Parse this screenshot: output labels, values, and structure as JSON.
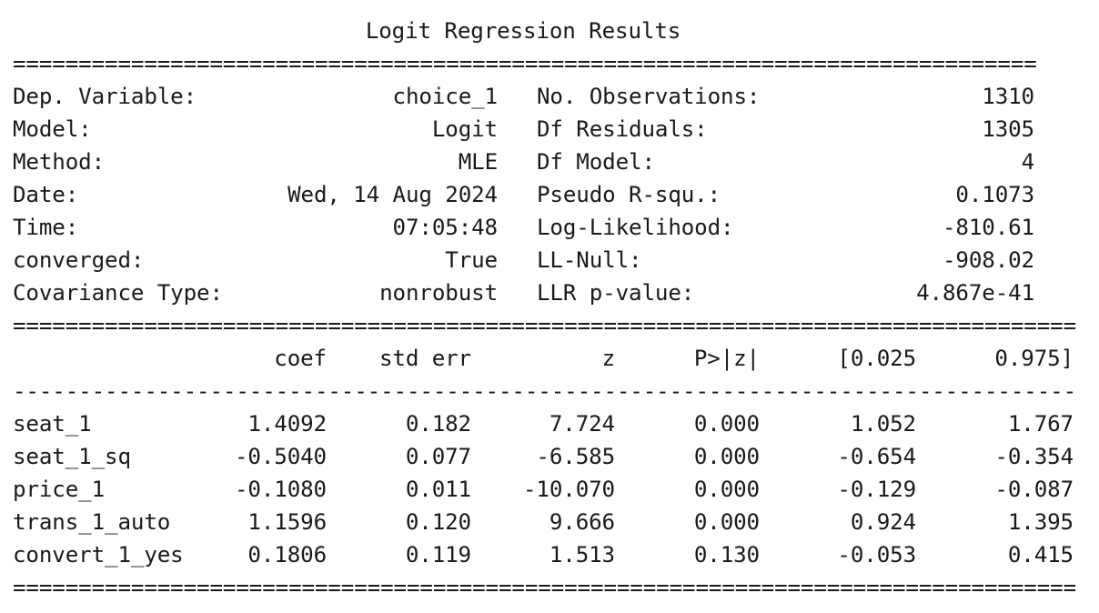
{
  "title": "Logit Regression Results",
  "separator_double": "=",
  "separator_single": "-",
  "summary_rows": [
    {
      "left_label": "Dep. Variable:",
      "left_value": "choice_1",
      "right_label": "No. Observations:",
      "right_value": "1310"
    },
    {
      "left_label": "Model:",
      "left_value": "Logit",
      "right_label": "Df Residuals:",
      "right_value": "1305"
    },
    {
      "left_label": "Method:",
      "left_value": "MLE",
      "right_label": "Df Model:",
      "right_value": "4"
    },
    {
      "left_label": "Date:",
      "left_value": "Wed, 14 Aug 2024",
      "right_label": "Pseudo R-squ.:",
      "right_value": "0.1073"
    },
    {
      "left_label": "Time:",
      "left_value": "07:05:48",
      "right_label": "Log-Likelihood:",
      "right_value": "-810.61"
    },
    {
      "left_label": "converged:",
      "left_value": "True",
      "right_label": "LL-Null:",
      "right_value": "-908.02"
    },
    {
      "left_label": "Covariance Type:",
      "left_value": "nonrobust",
      "right_label": "LLR p-value:",
      "right_value": "4.867e-41"
    }
  ],
  "coef_headers": [
    "coef",
    "std err",
    "z",
    "P>|z|",
    "[0.025",
    "0.975]"
  ],
  "coef_rows": [
    {
      "name": "seat_1",
      "values": [
        "1.4092",
        "0.182",
        "7.724",
        "0.000",
        "1.052",
        "1.767"
      ]
    },
    {
      "name": "seat_1_sq",
      "values": [
        "-0.5040",
        "0.077",
        "-6.585",
        "0.000",
        "-0.654",
        "-0.354"
      ]
    },
    {
      "name": "price_1",
      "values": [
        "-0.1080",
        "0.011",
        "-10.070",
        "0.000",
        "-0.129",
        "-0.087"
      ]
    },
    {
      "name": "trans_1_auto",
      "values": [
        "1.1596",
        "0.120",
        "9.666",
        "0.000",
        "0.924",
        "1.395"
      ]
    },
    {
      "name": "convert_1_yes",
      "values": [
        "0.1806",
        "0.119",
        "1.513",
        "0.130",
        "-0.053",
        "0.415"
      ]
    }
  ]
}
